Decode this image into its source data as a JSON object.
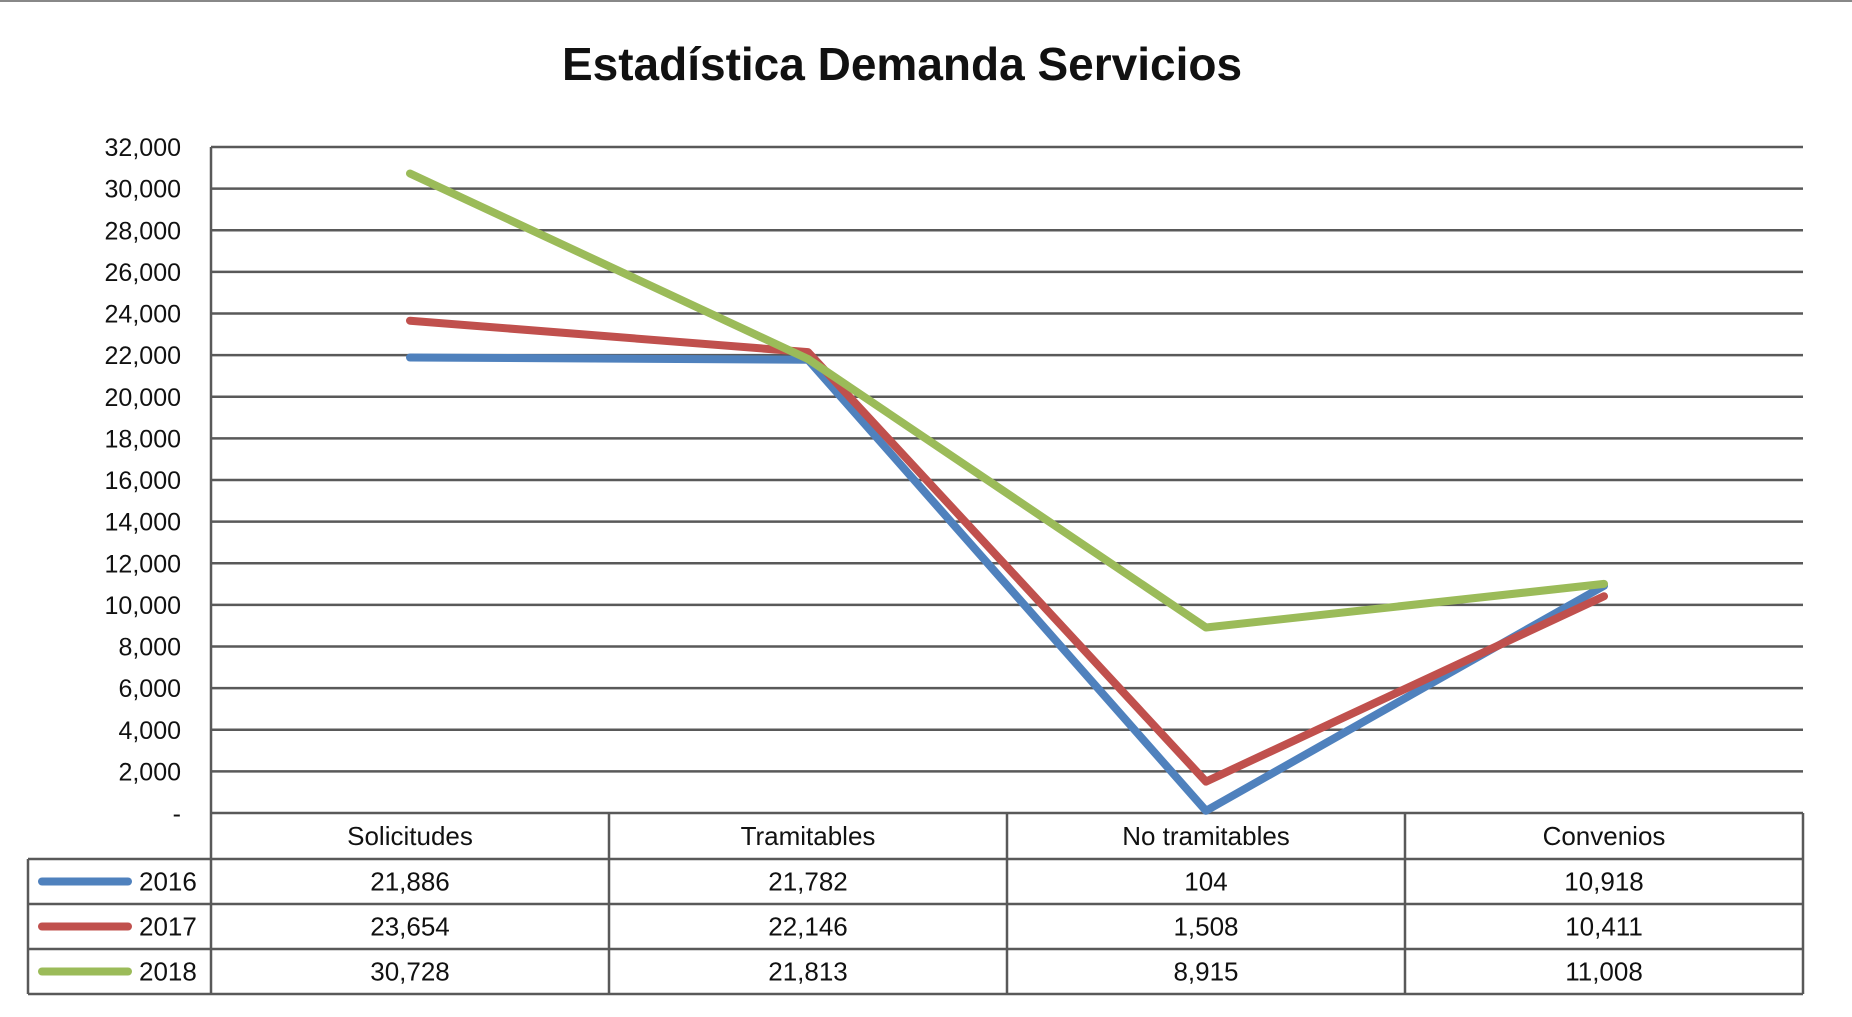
{
  "chart_data": {
    "type": "line",
    "title": "Estadística Demanda Servicios",
    "categories": [
      "Solicitudes",
      "Tramitables",
      "No tramitables",
      "Convenios"
    ],
    "series": [
      {
        "name": "2016",
        "color": "#4f81bd",
        "values": [
          21886,
          21782,
          104,
          10918
        ],
        "labels": [
          "21,886",
          "21,782",
          "104",
          "10,918"
        ]
      },
      {
        "name": "2017",
        "color": "#c0504d",
        "values": [
          23654,
          22146,
          1508,
          10411
        ],
        "labels": [
          "23,654",
          "22,146",
          "1,508",
          "10,411"
        ]
      },
      {
        "name": "2018",
        "color": "#9bbb59",
        "values": [
          30728,
          21813,
          8915,
          11008
        ],
        "labels": [
          "30,728",
          "21,813",
          "8,915",
          "11,008"
        ]
      }
    ],
    "ylim": [
      0,
      32000
    ],
    "yticks": [
      0,
      2000,
      4000,
      6000,
      8000,
      10000,
      12000,
      14000,
      16000,
      18000,
      20000,
      22000,
      24000,
      26000,
      28000,
      30000,
      32000
    ],
    "ytick_labels": [
      "-",
      "2,000",
      "4,000",
      "6,000",
      "8,000",
      "10,000",
      "12,000",
      "14,000",
      "16,000",
      "18,000",
      "20,000",
      "22,000",
      "24,000",
      "26,000",
      "28,000",
      "30,000",
      "32,000"
    ],
    "grid": true,
    "legend": "data-table-left",
    "xlabel": "",
    "ylabel": ""
  }
}
